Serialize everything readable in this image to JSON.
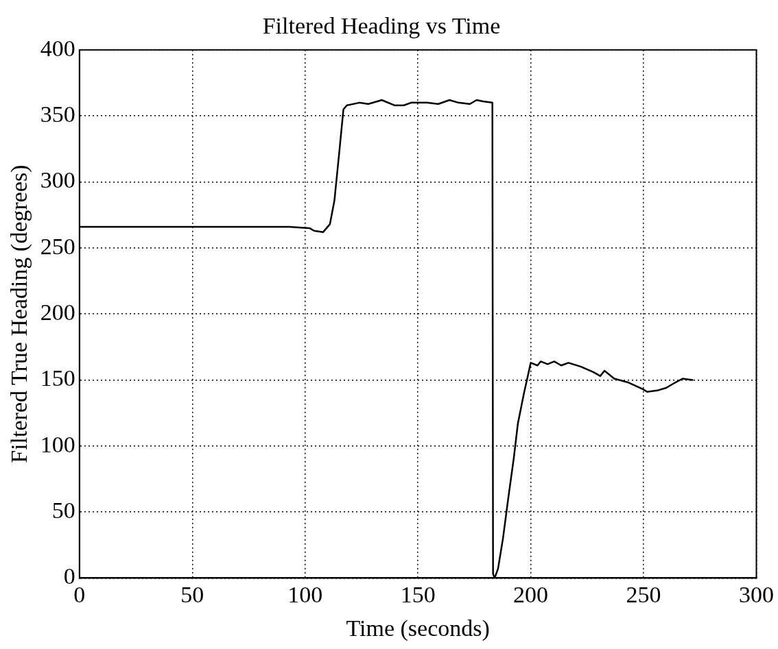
{
  "chart_data": {
    "type": "line",
    "title": "Filtered Heading vs Time",
    "xlabel": "Time (seconds)",
    "ylabel": "Filtered True Heading (degrees)",
    "xlim": [
      0,
      300
    ],
    "xticks": [
      0,
      50,
      100,
      150,
      200,
      250,
      300
    ],
    "ylim": [
      0,
      400
    ],
    "yticks": [
      0,
      50,
      100,
      150,
      200,
      250,
      300,
      350,
      400
    ],
    "grid": true,
    "legend": false,
    "marker": "none",
    "line_style": "solid",
    "series": [
      {
        "color": "#000000",
        "x": [
          0,
          93,
          102,
          104,
          108,
          111,
          113,
          115,
          117,
          118.5,
          124,
          128,
          134,
          139.6,
          143.7,
          147,
          154,
          159,
          164,
          168,
          173,
          176,
          179,
          183,
          183.3,
          184,
          185.5,
          187.7,
          190,
          192.5,
          194.3,
          197,
          200,
          203,
          204.4,
          207.5,
          210.4,
          213.5,
          216.7,
          222.3,
          227.7,
          230.8,
          232.7,
          237,
          243.4,
          249.7,
          251.6,
          256,
          260,
          264,
          267.3,
          271.7
        ],
        "values": [
          266,
          266,
          265,
          263,
          262,
          268,
          286,
          320,
          355,
          358,
          360,
          359,
          362,
          358,
          358,
          360,
          360,
          359,
          362,
          360,
          359,
          362,
          361,
          360,
          3,
          0,
          7,
          30,
          60,
          91,
          117,
          140,
          163,
          161,
          164,
          162,
          164,
          161,
          163,
          160,
          156,
          153,
          157,
          151,
          148,
          143,
          141,
          142,
          144,
          148,
          151,
          150
        ]
      }
    ]
  }
}
